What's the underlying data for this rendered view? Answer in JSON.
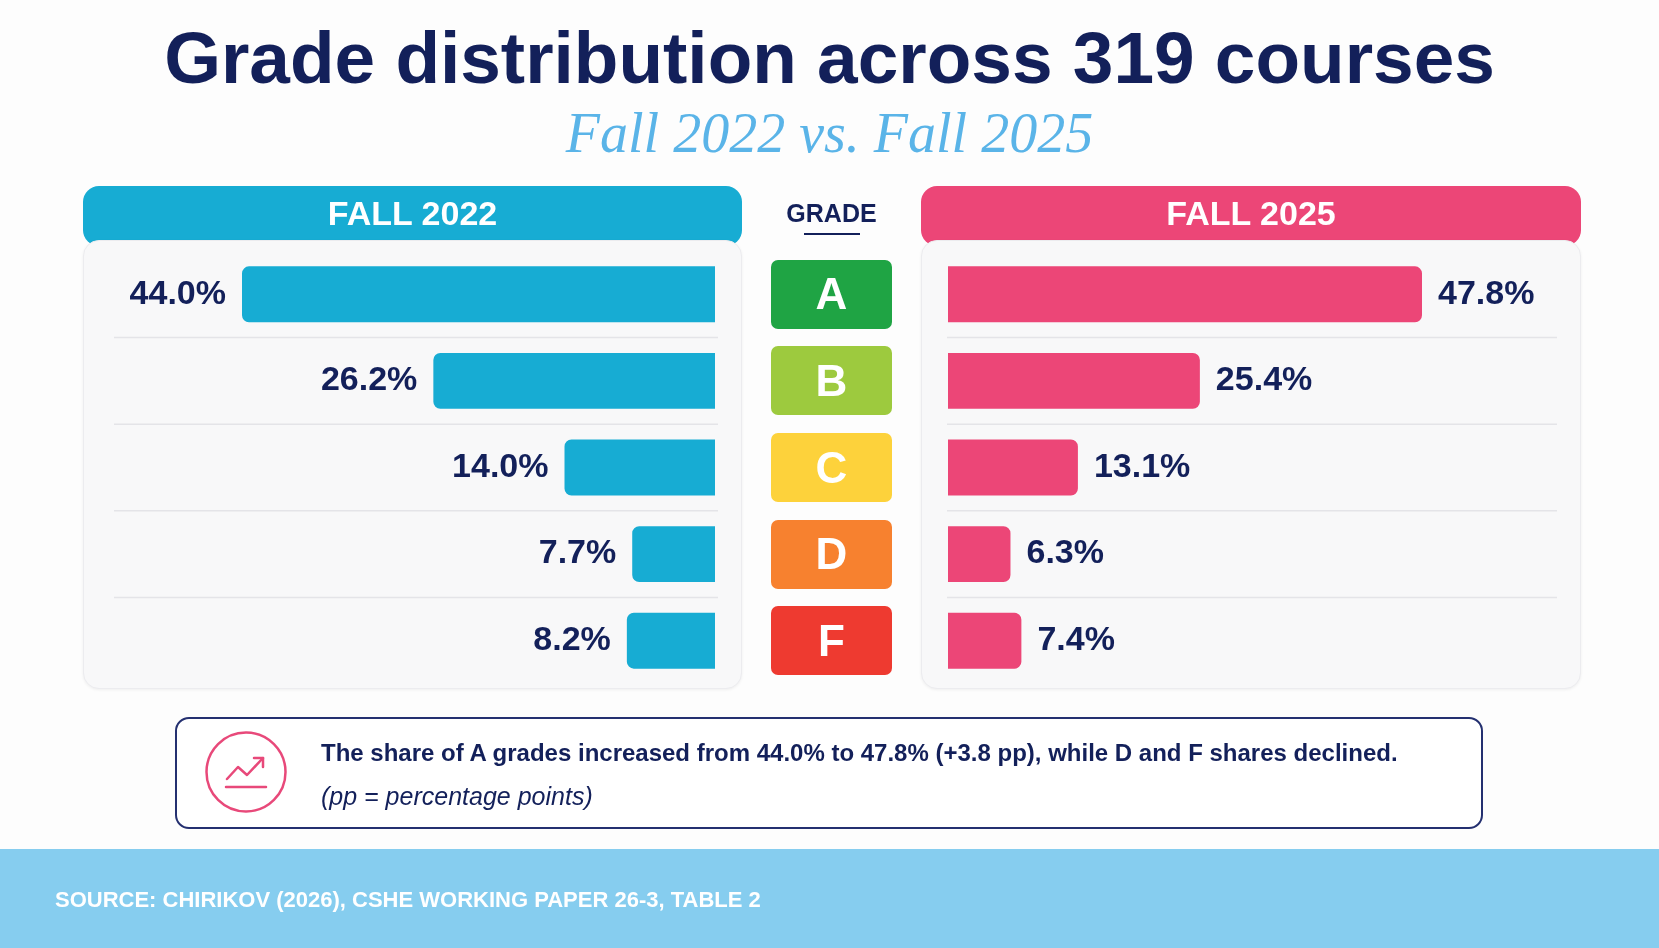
{
  "chart_data": [
    {
      "type": "bar",
      "orientation": "horizontal",
      "title": "Grade distribution across 319 courses",
      "subtitle": "Fall 2022 vs. Fall 2025",
      "ylabel": "GRADE",
      "categories": [
        "A",
        "B",
        "C",
        "D",
        "F"
      ],
      "series": [
        {
          "name": "FALL 2022",
          "color": "#17acd3",
          "values": [
            44.0,
            26.2,
            14.0,
            7.7,
            8.2
          ],
          "value_labels": [
            "44.0%",
            "26.2%",
            "14.0%",
            "7.7%",
            "8.2%"
          ]
        }
      ],
      "grid": "y",
      "legend": "top",
      "annotations": [
        "The share of A grades increased from 44.0% to 47.8% (+3.8 pp), while D and F shares declined.",
        "(pp = percentage points)",
        "SOURCE: CHIRIKOV (2026), CSHE WORKING PAPER 26-3, TABLE 2"
      ]
    },
    {
      "type": "bar",
      "orientation": "horizontal",
      "categories": [
        null,
        null,
        null,
        null,
        null
      ],
      "series": [
        {
          "name": "FALL 2025",
          "color": "#ec4677",
          "values": [
            47.8,
            25.4,
            13.1,
            6.3,
            7.4
          ],
          "value_labels": [
            "47.8%",
            "25.4%",
            "13.1%",
            "6.3%",
            "7.4%"
          ]
        }
      ],
      "grid": "y",
      "legend": "top",
      "tick_labels": false
    }
  ]
}
